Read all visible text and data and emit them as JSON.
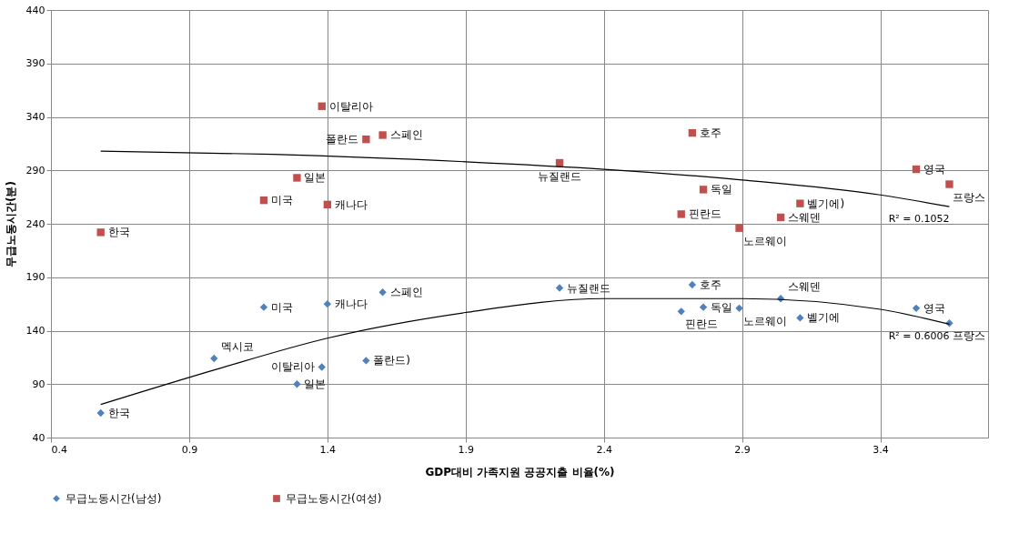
{
  "chart_data": {
    "type": "scatter",
    "xlabel": "GDP대비 가족지원 공공지출 비율(%)",
    "ylabel": "무급노동시간(분)",
    "xlim": [
      0.4,
      3.79
    ],
    "xticks": [
      0.4,
      0.9,
      1.4,
      1.9,
      2.4,
      2.9,
      3.4
    ],
    "ylim": [
      40,
      440
    ],
    "yticks": [
      40,
      90,
      140,
      190,
      240,
      290,
      340,
      390,
      440
    ],
    "grid": true,
    "legend": "bottom",
    "series": [
      {
        "name": "무급노동시간(남성)",
        "color": "#4f81bd",
        "marker": "diamond",
        "x": [
          0.58,
          0.99,
          1.17,
          1.29,
          1.38,
          1.4,
          1.54,
          1.6,
          2.24,
          2.72,
          2.68,
          2.76,
          2.89,
          3.04,
          3.11,
          3.53,
          3.65
        ],
        "values": [
          63,
          114,
          162,
          90,
          106,
          165,
          112,
          176,
          180,
          183,
          158,
          162,
          161,
          170,
          152,
          161,
          147
        ],
        "value_labels": [
          "한국",
          "멕시코",
          "미국",
          "일본",
          "이탈리아",
          "캐나다",
          "폴란드)",
          "스페인",
          "뉴질랜드",
          "호주",
          "핀란드",
          "독일",
          "노르웨이",
          "스웨덴",
          "벨기에",
          "영국",
          "프랑스"
        ]
      },
      {
        "name": "무급노동시간(여성)",
        "color": "#c0504d",
        "marker": "square",
        "x": [
          0.58,
          1.17,
          1.29,
          1.38,
          1.4,
          1.54,
          1.6,
          2.24,
          2.72,
          2.68,
          2.76,
          2.89,
          3.04,
          3.11,
          3.53,
          3.65
        ],
        "values": [
          232,
          262,
          283,
          350,
          258,
          319,
          323,
          297,
          325,
          249,
          272,
          236,
          246,
          259,
          291,
          277
        ],
        "value_labels": [
          "한국",
          "미국",
          "일본",
          "이탈리아",
          "캐나다",
          "폴란드",
          "스페인",
          "뉴질랜드",
          "호주",
          "핀란드",
          "독일",
          "노르웨이",
          "스웨덴",
          "벨기에)",
          "영국",
          "프랑스"
        ]
      },
      {
        "type": "line",
        "color": "#000000",
        "x": [
          0.58,
          1.0,
          1.4,
          1.9,
          2.4,
          2.9,
          3.4,
          3.65
        ],
        "values": [
          71,
          104,
          133,
          157,
          170,
          170,
          160,
          146
        ]
      },
      {
        "type": "line",
        "color": "#000000",
        "x": [
          0.58,
          1.2,
          1.9,
          2.4,
          2.9,
          3.4,
          3.65
        ],
        "values": [
          308,
          305,
          298,
          291,
          281,
          267,
          256
        ]
      }
    ],
    "annotations": [
      {
        "text": "R² = 0.1052",
        "x": 3.65,
        "y": 256
      },
      {
        "text": "R² = 0.6006",
        "x": 3.65,
        "y": 146
      }
    ]
  }
}
